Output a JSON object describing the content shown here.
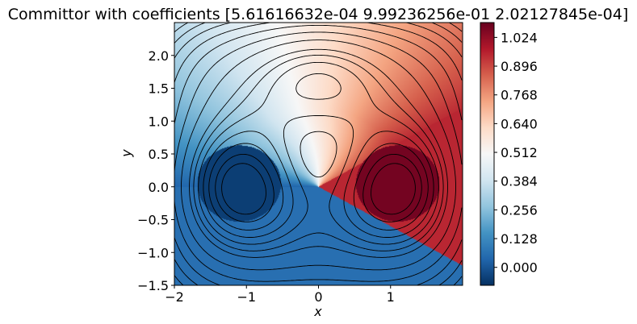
{
  "chart_data": {
    "type": "heatmap",
    "title": "Committor with coefficients [5.61616632e-04 9.99236256e-01 2.02127845e-04]",
    "xlabel": "x",
    "ylabel": "y",
    "xlim": [
      -2.0,
      2.0
    ],
    "ylim": [
      -1.5,
      2.5
    ],
    "x_ticks": [
      -2,
      -1,
      0,
      1
    ],
    "x_tick_labels": [
      "−2",
      "−1",
      "0",
      "1"
    ],
    "y_ticks": [
      -1.5,
      -1.0,
      -0.5,
      0.0,
      0.5,
      1.0,
      1.5,
      2.0
    ],
    "y_tick_labels": [
      "−1.5",
      "−1.0",
      "−0.5",
      "0.0",
      "0.5",
      "1.0",
      "1.5",
      "2.0"
    ],
    "colormap": "RdBu",
    "colormap_stops": [
      "#67001f",
      "#b2182b",
      "#d6604d",
      "#f4a582",
      "#fddbc7",
      "#f7f7f7",
      "#d1e5f0",
      "#92c5de",
      "#4393c3",
      "#2166ac",
      "#053061"
    ],
    "colorbar": {
      "vmin": -0.08,
      "vmax": 1.09,
      "ticks": [
        0.0,
        0.128,
        0.256,
        0.384,
        0.512,
        0.64,
        0.768,
        0.896,
        1.024
      ],
      "tick_labels": [
        "0.000",
        "0.128",
        "0.256",
        "0.384",
        "0.512",
        "0.640",
        "0.768",
        "0.896",
        "1.024"
      ]
    },
    "regions": {
      "reactant_basin": {
        "center": [
          -1.1,
          0.05
        ],
        "radius": 0.58,
        "value": -0.05
      },
      "product_basin": {
        "center": [
          1.1,
          0.05
        ],
        "radius": 0.58,
        "value": 1.07
      },
      "lower_sector_value": 0.06,
      "right_sector_value": 0.95,
      "right_sector_upper_slope": 0.6,
      "right_sector_lower_slope": -0.6
    },
    "contours": {
      "potential": "V(x,y) = 3 e^{-x^2-(y-1/3)^2} - 3 e^{-x^2-(y-5/3)^2} - 5 e^{-(x-1)^2-y^2} - 5 e^{-(x+1)^2-y^2} + 0.2 x^4 + 0.2 (y-1/3)^4",
      "levels": [
        -3.4,
        -3.0,
        -2.5,
        -2.0,
        -1.5,
        -1.0,
        -0.5,
        0.5,
        1.5,
        2.5,
        3.5,
        4.5,
        5.5,
        6.5,
        7.5,
        8.5
      ],
      "negative_linestyle": "dashed"
    }
  }
}
